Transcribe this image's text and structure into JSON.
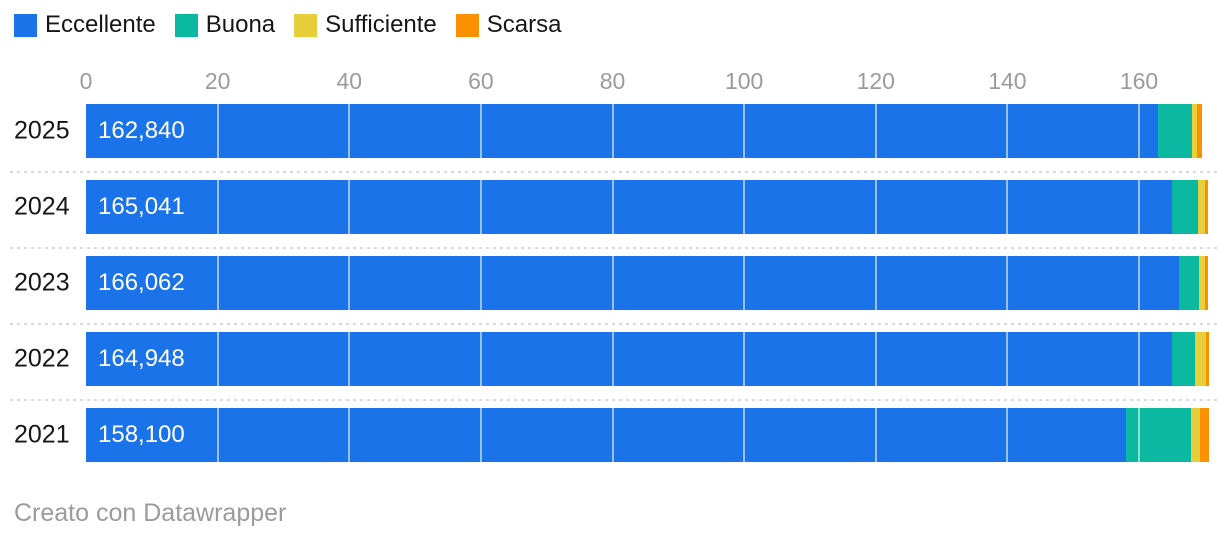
{
  "chart_data": {
    "type": "bar",
    "stacked": true,
    "orientation": "horizontal",
    "categories": [
      "2025",
      "2024",
      "2023",
      "2022",
      "2021"
    ],
    "series": [
      {
        "name": "Eccellente",
        "color": "#1a73e8",
        "values": [
          162840,
          165041,
          166062,
          164948,
          158100
        ],
        "value_labels": [
          "162,840",
          "165,041",
          "166,062",
          "164,948",
          "158,100"
        ]
      },
      {
        "name": "Buona",
        "color": "#0ab9a0",
        "values": [
          5200,
          3950,
          3050,
          3600,
          9850
        ]
      },
      {
        "name": "Sufficiente",
        "color": "#e6cf3a",
        "values": [
          800,
          1000,
          900,
          1600,
          1300
        ]
      },
      {
        "name": "Scarsa",
        "color": "#fb9100",
        "values": [
          760,
          500,
          520,
          460,
          1400
        ]
      }
    ],
    "x_axis": {
      "tick_labels": [
        "0",
        "20",
        "40",
        "60",
        "80",
        "100",
        "120",
        "140",
        "160"
      ],
      "tick_values": [
        0,
        20,
        40,
        60,
        80,
        100,
        120,
        140,
        160
      ],
      "min": 0,
      "max": 160,
      "unit_divisor": 1000
    },
    "grid": true,
    "legend_position": "top-left"
  },
  "legend": {
    "items": [
      {
        "label": "Eccellente",
        "color": "#1a73e8"
      },
      {
        "label": "Buona",
        "color": "#0ab9a0"
      },
      {
        "label": "Sufficiente",
        "color": "#e6cf3a"
      },
      {
        "label": "Scarsa",
        "color": "#fb9100"
      }
    ]
  },
  "footer": {
    "credit": "Creato con Datawrapper"
  },
  "colors": {
    "axis_label": "#9b9b9b",
    "year_label": "#161616",
    "value_label": "#ffffff",
    "separator": "#d9d9d9",
    "background": "#ffffff"
  }
}
